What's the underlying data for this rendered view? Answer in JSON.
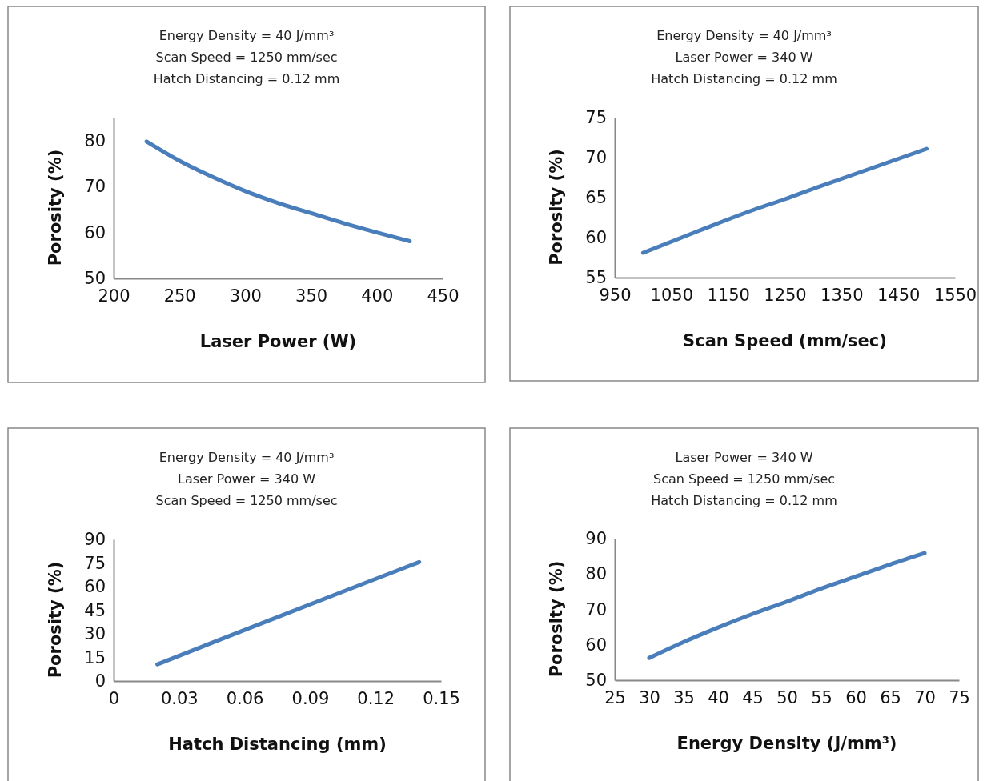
{
  "chart_data": [
    {
      "type": "line",
      "annotations": [
        "Energy Density = 40 J/mm³",
        "Scan Speed = 1250 mm/sec",
        "Hatch Distancing = 0.12 mm"
      ],
      "xlabel": "Laser Power (W)",
      "ylabel": "Porosity (%)",
      "xlim": [
        200,
        450
      ],
      "xticks": [
        200,
        250,
        300,
        350,
        400,
        450
      ],
      "ylim": [
        50,
        85
      ],
      "yticks": [
        50,
        60,
        70,
        80
      ],
      "x": [
        225,
        250,
        275,
        300,
        325,
        350,
        375,
        400,
        425
      ],
      "series": [
        {
          "color": "#4a7ebb",
          "values": [
            79.8,
            75.6,
            72.1,
            69.0,
            66.4,
            64.2,
            62.0,
            60.0,
            58.1
          ]
        }
      ]
    },
    {
      "type": "line",
      "annotations": [
        "Energy Density = 40 J/mm³",
        "Laser Power = 340 W",
        "Hatch Distancing = 0.12 mm"
      ],
      "xlabel": "Scan Speed (mm/sec)",
      "ylabel": "Porosity (%)",
      "xlim": [
        950,
        1550
      ],
      "xticks": [
        950,
        1050,
        1150,
        1250,
        1350,
        1450,
        1550
      ],
      "ylim": [
        55,
        75
      ],
      "yticks": [
        55,
        60,
        65,
        70,
        75
      ],
      "x": [
        1000,
        1100,
        1200,
        1250,
        1300,
        1400,
        1500
      ],
      "series": [
        {
          "color": "#4a7ebb",
          "values": [
            58.1,
            60.9,
            63.6,
            64.8,
            66.1,
            68.6,
            71.1
          ]
        }
      ]
    },
    {
      "type": "line",
      "annotations": [
        "Energy Density = 40 J/mm³",
        "Laser Power = 340 W",
        "Scan Speed = 1250 mm/sec"
      ],
      "xlabel": "Hatch Distancing (mm)",
      "ylabel": "Porosity (%)",
      "xlim": [
        0,
        0.15
      ],
      "xticks": [
        0,
        0.03,
        0.06,
        0.09,
        0.12,
        0.15
      ],
      "ylim": [
        0,
        90
      ],
      "yticks": [
        0,
        15,
        30,
        45,
        60,
        75,
        90
      ],
      "x": [
        0.02,
        0.05,
        0.08,
        0.11,
        0.14
      ],
      "series": [
        {
          "color": "#4a7ebb",
          "values": [
            10.6,
            27,
            43.3,
            59.5,
            75.6
          ]
        }
      ]
    },
    {
      "type": "line",
      "annotations": [
        "Laser Power = 340 W",
        "Scan Speed = 1250 mm/sec",
        "Hatch Distancing = 0.12 mm"
      ],
      "xlabel": "Energy Density (J/mm³)",
      "ylabel": "Porosity (%)",
      "xlim": [
        25,
        75
      ],
      "xticks": [
        25,
        30,
        35,
        40,
        45,
        50,
        55,
        60,
        65,
        70,
        75
      ],
      "ylim": [
        50,
        90
      ],
      "yticks": [
        50,
        60,
        70,
        80,
        90
      ],
      "x": [
        30,
        35,
        40,
        45,
        50,
        55,
        60,
        65,
        70
      ],
      "series": [
        {
          "color": "#4a7ebb",
          "values": [
            56.3,
            60.8,
            64.9,
            68.7,
            72.2,
            75.9,
            79.3,
            82.7,
            85.9
          ]
        }
      ]
    }
  ]
}
